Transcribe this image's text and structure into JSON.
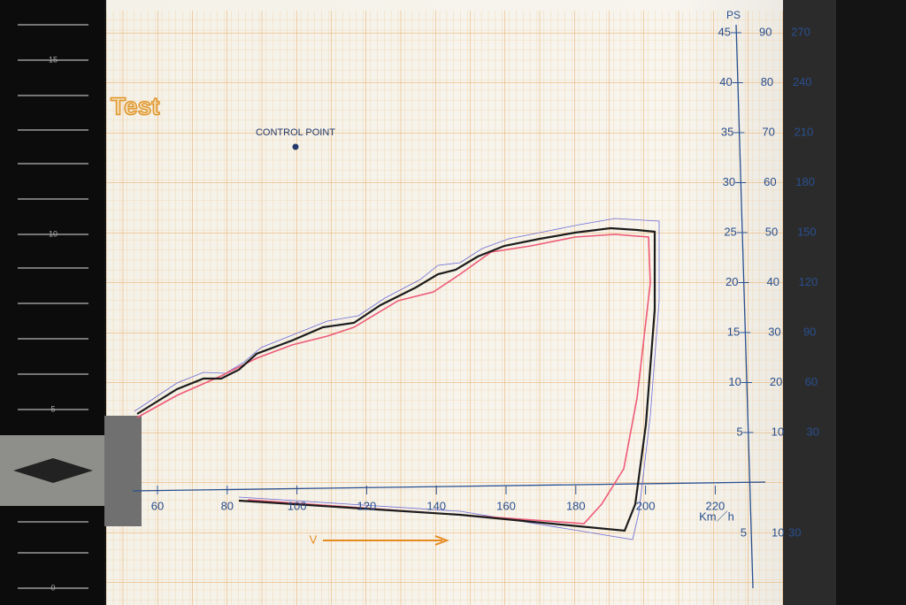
{
  "title": "Test",
  "control_point": "CONTROL POINT",
  "axis_unit": "PS",
  "ruler_labels": [
    "15",
    "10",
    "5",
    "0"
  ],
  "right_scale": [
    [
      "45",
      "90",
      "270"
    ],
    [
      "40",
      "80",
      "240"
    ],
    [
      "35",
      "70",
      "210"
    ],
    [
      "30",
      "60",
      "180"
    ],
    [
      "25",
      "50",
      "150"
    ],
    [
      "20",
      "40",
      "120"
    ],
    [
      "15",
      "30",
      "90"
    ],
    [
      "10",
      "20",
      "60"
    ],
    [
      "5",
      "10",
      "30"
    ]
  ],
  "negative_scale": [
    "5",
    "10",
    "30"
  ],
  "x_labels": [
    "60",
    "80",
    "100",
    "120",
    "140",
    "160",
    "180",
    "200",
    "220"
  ],
  "x_unit": "Km／h",
  "arrow_label": "V"
}
